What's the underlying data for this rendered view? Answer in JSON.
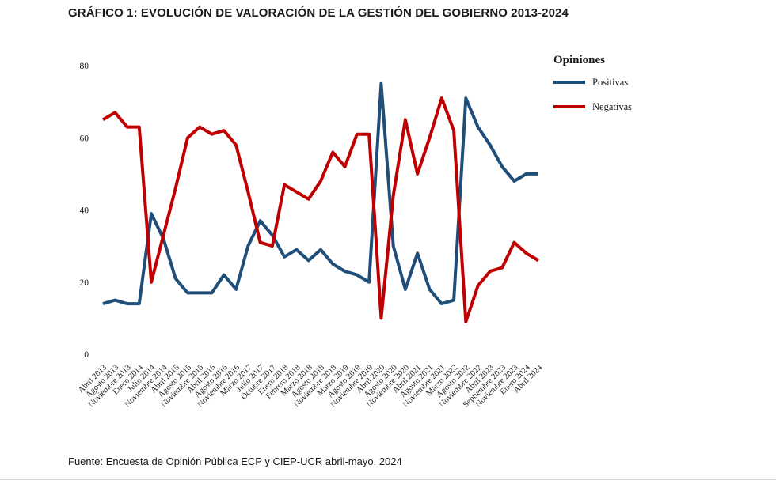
{
  "title": "GRÁFICO 1: EVOLUCIÓN DE VALORACIÓN DE LA GESTIÓN DEL GOBIERNO 2013-2024",
  "source": "Fuente: Encuesta de Opinión Pública ECP y CIEP-UCR abril-mayo, 2024",
  "legend": {
    "title": "Opiniones",
    "items": [
      {
        "label": "Positivas",
        "color": "#1f4e79"
      },
      {
        "label": "Negativas",
        "color": "#c00000"
      }
    ]
  },
  "chart_data": {
    "type": "line",
    "title": "GRÁFICO 1: EVOLUCIÓN DE VALORACIÓN DE LA GESTIÓN DEL GOBIERNO 2013-2024",
    "xlabel": "",
    "ylabel": "",
    "ylim": [
      0,
      80
    ],
    "yticks": [
      0,
      20,
      40,
      60,
      80
    ],
    "grid": false,
    "legend_position": "right",
    "legend_title": "Opiniones",
    "categories": [
      "Abril 2013",
      "Agosto 2013",
      "Noviembre 2013",
      "Enero 2014",
      "Julio 2014",
      "Noviembre 2014",
      "Abril 2015",
      "Agosto 2015",
      "Noviembre 2015",
      "Abril 2016",
      "Agosto 2016",
      "Noviembre 2016",
      "Marzo 2017",
      "Julio 2017",
      "Octubre 2017",
      "Enero 2018",
      "Febrero 2018",
      "Marzo 2018",
      "Agosto 2018",
      "Noviembre 2018",
      "Marzo 2019",
      "Agosto 2019",
      "Noviembre 2019",
      "Abril 2020",
      "Agosto 2020",
      "Noviembre 2020",
      "Abril 2021",
      "Agosto 2021",
      "Noviembre 2021",
      "Marzo 2022",
      "Agosto 2022",
      "Noviembre 2022",
      "Abril 2023",
      "Septiembre 2023",
      "Noviembre 2023",
      "Enero 2024",
      "Abril 2024"
    ],
    "series": [
      {
        "name": "Positivas",
        "color": "#1f4e79",
        "values": [
          14,
          15,
          14,
          14,
          39,
          32,
          21,
          17,
          17,
          17,
          22,
          18,
          30,
          37,
          33,
          27,
          29,
          26,
          29,
          25,
          23,
          22,
          20,
          75,
          30,
          18,
          28,
          18,
          14,
          15,
          71,
          63,
          58,
          52,
          48,
          50,
          50
        ]
      },
      {
        "name": "Negativas",
        "color": "#c00000",
        "values": [
          65,
          67,
          63,
          63,
          20,
          33,
          46,
          60,
          63,
          61,
          62,
          58,
          45,
          31,
          30,
          47,
          45,
          43,
          48,
          56,
          52,
          61,
          61,
          10,
          44,
          65,
          50,
          60,
          71,
          62,
          9,
          19,
          23,
          24,
          31,
          28,
          26
        ]
      }
    ]
  }
}
